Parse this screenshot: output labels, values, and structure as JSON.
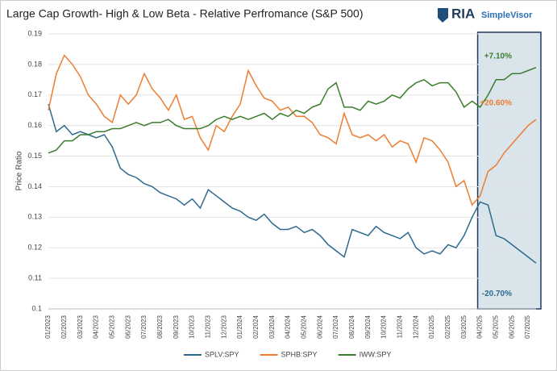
{
  "chart_data": {
    "type": "line",
    "title": "Large Cap Growth- High & Low Beta - Relative Perfromance (S&P 500)",
    "brand": "RIA",
    "brand_sub": "SimpleVisor",
    "y_label": "Price Ratio",
    "categories": [
      "01/2023",
      null,
      "02/2023",
      null,
      "03/2023",
      null,
      "04/2023",
      null,
      "05/2023",
      null,
      "06/2023",
      null,
      "07/2023",
      null,
      "08/2023",
      null,
      "09/2023",
      null,
      "10/2023",
      null,
      "11/2023",
      null,
      "12/2023",
      null,
      "01/2024",
      null,
      "02/2024",
      null,
      "03/2024",
      null,
      "04/2024",
      null,
      "05/2024",
      null,
      "06/2024",
      null,
      "07/2024",
      null,
      "08/2024",
      null,
      "09/2024",
      null,
      "10/2024",
      null,
      "11/2024",
      null,
      "12/2024",
      null,
      "01/2025",
      null,
      "02/2025",
      null,
      "03/2025",
      null,
      "04/2025",
      null,
      "05/2025",
      null,
      "06/2025",
      null,
      "07/2025",
      null
    ],
    "series": [
      {
        "name": "SPLV:SPY",
        "color": "#2e6a8e",
        "values": [
          0.167,
          0.158,
          0.16,
          0.157,
          0.158,
          0.157,
          0.156,
          0.157,
          0.153,
          0.146,
          0.144,
          0.143,
          0.141,
          0.14,
          0.138,
          0.137,
          0.136,
          0.134,
          0.136,
          0.133,
          0.139,
          0.137,
          0.135,
          0.133,
          0.132,
          0.13,
          0.129,
          0.131,
          0.128,
          0.126,
          0.126,
          0.127,
          0.125,
          0.126,
          0.124,
          0.121,
          0.119,
          0.117,
          0.126,
          0.125,
          0.124,
          0.127,
          0.125,
          0.124,
          0.123,
          0.125,
          0.12,
          0.118,
          0.119,
          0.118,
          0.121,
          0.12,
          0.124,
          0.13,
          0.135,
          0.134,
          0.124,
          0.123,
          0.121,
          0.119,
          0.117,
          0.115
        ]
      },
      {
        "name": "SPHB:SPY",
        "color": "#ed7d31",
        "values": [
          0.165,
          0.177,
          0.183,
          0.18,
          0.176,
          0.17,
          0.167,
          0.163,
          0.161,
          0.17,
          0.167,
          0.17,
          0.177,
          0.172,
          0.169,
          0.165,
          0.17,
          0.162,
          0.163,
          0.156,
          0.152,
          0.16,
          0.158,
          0.163,
          0.167,
          0.178,
          0.173,
          0.169,
          0.168,
          0.165,
          0.166,
          0.163,
          0.163,
          0.161,
          0.157,
          0.156,
          0.154,
          0.164,
          0.157,
          0.156,
          0.157,
          0.155,
          0.157,
          0.153,
          0.155,
          0.154,
          0.148,
          0.156,
          0.155,
          0.152,
          0.148,
          0.14,
          0.142,
          0.134,
          0.137,
          0.145,
          0.147,
          0.151,
          0.154,
          0.157,
          0.16,
          0.162
        ]
      },
      {
        "name": "IWW:SPY",
        "color": "#3a7d2c",
        "values": [
          0.151,
          0.152,
          0.155,
          0.155,
          0.157,
          0.157,
          0.158,
          0.158,
          0.159,
          0.159,
          0.16,
          0.161,
          0.16,
          0.161,
          0.161,
          0.162,
          0.16,
          0.159,
          0.159,
          0.159,
          0.16,
          0.162,
          0.163,
          0.162,
          0.163,
          0.162,
          0.163,
          0.164,
          0.162,
          0.164,
          0.163,
          0.165,
          0.164,
          0.166,
          0.167,
          0.172,
          0.174,
          0.166,
          0.166,
          0.165,
          0.168,
          0.167,
          0.168,
          0.17,
          0.169,
          0.172,
          0.174,
          0.175,
          0.173,
          0.174,
          0.174,
          0.171,
          0.166,
          0.168,
          0.166,
          0.17,
          0.175,
          0.175,
          0.177,
          0.177,
          0.178,
          0.179
        ]
      }
    ],
    "annotations": [
      {
        "text": "+7.10%",
        "series": 2
      },
      {
        "text": "+20.60%",
        "series": 1
      },
      {
        "text": "-20.70%",
        "series": 0
      }
    ],
    "highlight_from": "04/2025",
    "ylim": [
      0.1,
      0.19
    ],
    "yticks": [
      0.1,
      0.11,
      0.12,
      0.13,
      0.14,
      0.15,
      0.16,
      0.17,
      0.18,
      0.19
    ],
    "grid": true,
    "legend": "bottom"
  }
}
